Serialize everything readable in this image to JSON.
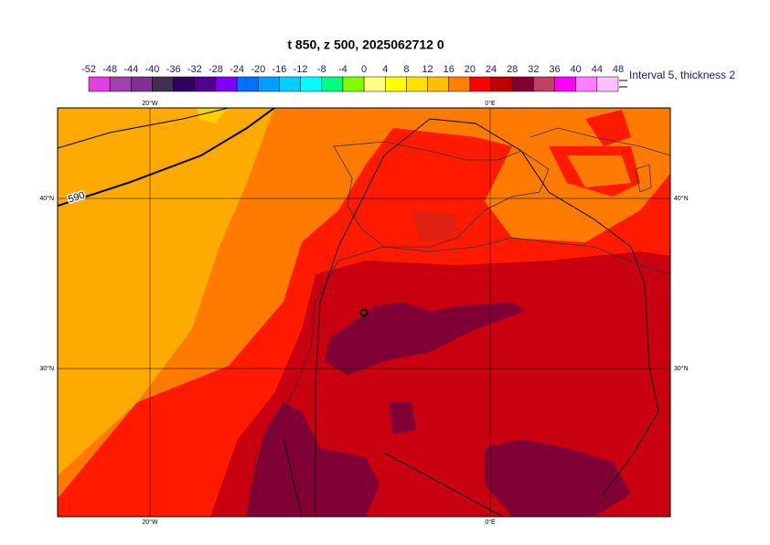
{
  "title": "t 850, z 500, 2025062712 0",
  "colorbar": {
    "levels": [
      -52,
      -48,
      -44,
      -40,
      -36,
      -32,
      -28,
      -24,
      -20,
      -16,
      -12,
      -8,
      -4,
      0,
      4,
      8,
      12,
      16,
      20,
      24,
      28,
      32,
      36,
      40,
      44,
      48
    ],
    "colors": [
      "#e040e0",
      "#a040b0",
      "#803090",
      "#403050",
      "#300060",
      "#500090",
      "#8000ff",
      "#0070ff",
      "#00a0ff",
      "#00d0ff",
      "#00ffff",
      "#00ff80",
      "#80ff00",
      "#ffff80",
      "#ffff00",
      "#ffe000",
      "#ffc000",
      "#ff8000",
      "#ff0000",
      "#c00000",
      "#800030",
      "#c04060",
      "#ff00ff",
      "#ff80ff",
      "#ffc0ff"
    ],
    "note": "Interval 5, thickness 2"
  },
  "map": {
    "lon_labels": [
      "20°W",
      "0°E"
    ],
    "lat_labels": [
      "40°N",
      "30°N"
    ],
    "contour_label": "590"
  }
}
